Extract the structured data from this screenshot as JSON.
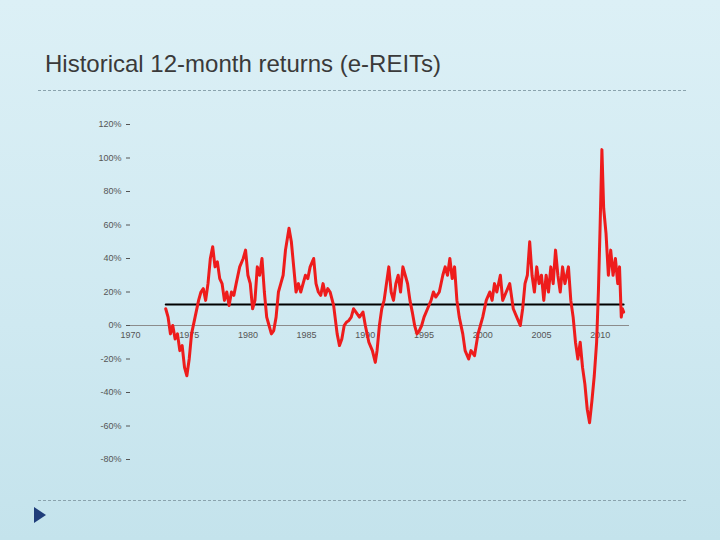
{
  "chart_data": {
    "type": "line",
    "title": "Historical 12-month returns (e-REITs)",
    "color": "#ee1c1c",
    "x": [
      1973.0,
      1973.2,
      1973.4,
      1973.6,
      1973.8,
      1974.0,
      1974.2,
      1974.4,
      1974.6,
      1974.8,
      1975.0,
      1975.2,
      1975.5,
      1975.8,
      1976.0,
      1976.2,
      1976.4,
      1976.6,
      1976.8,
      1977.0,
      1977.2,
      1977.4,
      1977.6,
      1977.8,
      1978.0,
      1978.2,
      1978.4,
      1978.6,
      1978.8,
      1979.0,
      1979.3,
      1979.6,
      1979.8,
      1980.0,
      1980.2,
      1980.4,
      1980.6,
      1980.8,
      1981.0,
      1981.2,
      1981.4,
      1981.6,
      1981.8,
      1982.0,
      1982.2,
      1982.4,
      1982.6,
      1982.8,
      1983.0,
      1983.2,
      1983.5,
      1983.7,
      1983.9,
      1984.1,
      1984.3,
      1984.5,
      1984.7,
      1984.9,
      1985.1,
      1985.3,
      1985.6,
      1985.8,
      1986.0,
      1986.2,
      1986.4,
      1986.6,
      1986.8,
      1987.0,
      1987.3,
      1987.6,
      1987.8,
      1988.0,
      1988.2,
      1988.4,
      1988.6,
      1988.8,
      1989.0,
      1989.2,
      1989.5,
      1989.8,
      1990.0,
      1990.3,
      1990.6,
      1990.85,
      1991.0,
      1991.2,
      1991.4,
      1991.6,
      1991.8,
      1992.0,
      1992.2,
      1992.4,
      1992.6,
      1992.8,
      1993.0,
      1993.2,
      1993.4,
      1993.6,
      1993.8,
      1994.0,
      1994.2,
      1994.4,
      1994.6,
      1994.8,
      1995.0,
      1995.3,
      1995.6,
      1995.8,
      1996.0,
      1996.3,
      1996.6,
      1996.8,
      1997.0,
      1997.2,
      1997.4,
      1997.6,
      1997.8,
      1998.0,
      1998.3,
      1998.5,
      1998.8,
      1999.0,
      1999.3,
      1999.6,
      1999.8,
      2000.0,
      2000.3,
      2000.6,
      2000.8,
      2001.0,
      2001.2,
      2001.5,
      2001.7,
      2002.0,
      2002.3,
      2002.6,
      2002.9,
      2003.2,
      2003.4,
      2003.6,
      2003.8,
      2004.0,
      2004.2,
      2004.4,
      2004.6,
      2004.8,
      2005.0,
      2005.2,
      2005.4,
      2005.6,
      2005.8,
      2006.0,
      2006.2,
      2006.4,
      2006.6,
      2006.8,
      2007.0,
      2007.3,
      2007.5,
      2007.7,
      2007.9,
      2008.1,
      2008.3,
      2008.5,
      2008.7,
      2008.9,
      2009.1,
      2009.3,
      2009.5,
      2009.7,
      2009.85,
      2010.0,
      2010.15,
      2010.3,
      2010.5,
      2010.7,
      2010.9,
      2011.1,
      2011.3,
      2011.5,
      2011.65,
      2011.8,
      2011.9,
      2012.0
    ],
    "values": [
      10,
      5,
      -5,
      0,
      -8,
      -5,
      -15,
      -12,
      -25,
      -30,
      -20,
      -5,
      5,
      15,
      20,
      22,
      15,
      25,
      40,
      47,
      35,
      38,
      28,
      25,
      15,
      20,
      12,
      20,
      18,
      25,
      35,
      40,
      45,
      30,
      25,
      10,
      15,
      35,
      30,
      40,
      20,
      5,
      0,
      -5,
      -3,
      5,
      20,
      25,
      30,
      45,
      58,
      50,
      35,
      20,
      25,
      20,
      25,
      30,
      28,
      35,
      40,
      25,
      20,
      18,
      25,
      18,
      22,
      20,
      12,
      -5,
      -12,
      -8,
      0,
      2,
      3,
      5,
      10,
      8,
      5,
      8,
      0,
      -10,
      -15,
      -22,
      -15,
      0,
      10,
      15,
      25,
      35,
      20,
      15,
      25,
      30,
      20,
      35,
      30,
      25,
      15,
      8,
      0,
      -5,
      -3,
      0,
      5,
      10,
      15,
      20,
      17,
      20,
      30,
      35,
      30,
      40,
      28,
      35,
      15,
      5,
      -5,
      -15,
      -20,
      -15,
      -18,
      -5,
      0,
      5,
      15,
      20,
      15,
      25,
      20,
      30,
      15,
      20,
      25,
      10,
      5,
      0,
      10,
      25,
      30,
      50,
      30,
      20,
      35,
      25,
      30,
      15,
      30,
      20,
      35,
      25,
      45,
      30,
      20,
      35,
      25,
      35,
      15,
      5,
      -10,
      -20,
      -10,
      -25,
      -35,
      -50,
      -58,
      -45,
      -30,
      -10,
      20,
      60,
      105,
      70,
      55,
      30,
      45,
      30,
      40,
      25,
      35,
      5,
      10,
      8
    ],
    "average": {
      "x": [
        1973.0,
        2012.0
      ],
      "values": [
        12.5,
        12.5
      ],
      "color": "#000000"
    },
    "xlim": [
      1970,
      2012.5
    ],
    "xticks": [
      1970,
      1975,
      1980,
      1985,
      1990,
      1995,
      2000,
      2005,
      2010
    ],
    "ylim": [
      -80,
      120
    ],
    "yticks": [
      {
        "value": -80,
        "label": "-80%"
      },
      {
        "value": -60,
        "label": "-60%"
      },
      {
        "value": -40,
        "label": "-40%"
      },
      {
        "value": -20,
        "label": "-20%"
      },
      {
        "value": 0,
        "label": "0%"
      },
      {
        "value": 20,
        "label": "20%"
      },
      {
        "value": 40,
        "label": "40%"
      },
      {
        "value": 60,
        "label": "60%"
      },
      {
        "value": 80,
        "label": "80%"
      },
      {
        "value": 100,
        "label": "100%"
      },
      {
        "value": 120,
        "label": "120%"
      }
    ],
    "grid": false
  }
}
